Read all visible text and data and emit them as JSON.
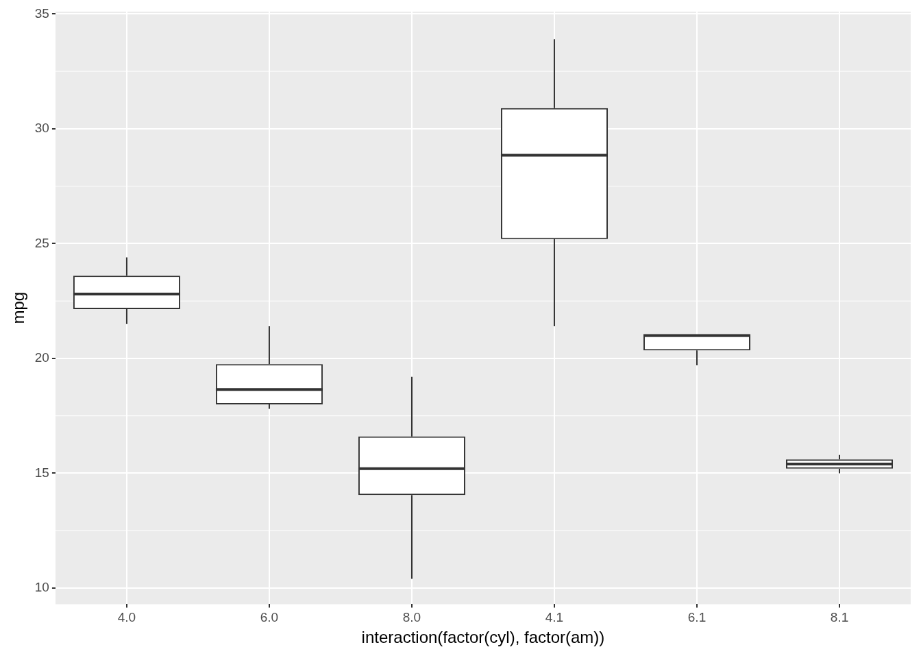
{
  "chart_data": {
    "type": "box",
    "xlabel": "interaction(factor(cyl), factor(am))",
    "ylabel": "mpg",
    "categories": [
      "4.0",
      "6.0",
      "8.0",
      "4.1",
      "6.1",
      "8.1"
    ],
    "boxes": [
      {
        "low": 21.5,
        "q1": 22.15,
        "median": 22.8,
        "q3": 23.6,
        "high": 24.4
      },
      {
        "low": 17.8,
        "q1": 18.0,
        "median": 18.65,
        "q3": 19.75,
        "high": 21.4
      },
      {
        "low": 10.4,
        "q1": 14.05,
        "median": 15.2,
        "q3": 16.6,
        "high": 19.2
      },
      {
        "low": 21.4,
        "q1": 25.2,
        "median": 28.85,
        "q3": 30.9,
        "high": 33.9
      },
      {
        "low": 19.7,
        "q1": 20.35,
        "median": 21.0,
        "q3": 21.0,
        "high": 21.0
      },
      {
        "low": 15.0,
        "q1": 15.2,
        "median": 15.4,
        "q3": 15.6,
        "high": 15.8
      }
    ],
    "ylim": [
      9.3,
      35.1
    ],
    "yticks": [
      10,
      15,
      20,
      25,
      30,
      35
    ],
    "grid": true
  }
}
